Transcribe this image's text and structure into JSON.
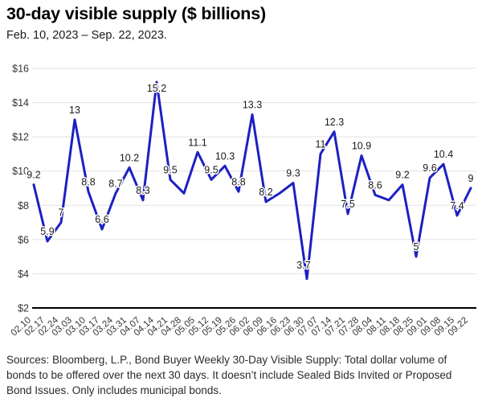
{
  "header": {
    "title": "30-day visible supply ($ billions)",
    "subtitle": "Feb. 10, 2023 – Sep. 22, 2023."
  },
  "chart_data": {
    "type": "line",
    "title": "30-day visible supply ($ billions)",
    "subtitle": "Feb. 10, 2023 – Sep. 22, 2023.",
    "series_name": "30-day visible supply",
    "x_tick_labels": [
      "02.10",
      "02.17",
      "02.24",
      "03.03",
      "03.10",
      "03.17",
      "03.24",
      "03.31",
      "04.07",
      "04.14",
      "04.21",
      "04.28",
      "05.05",
      "05.12",
      "05.19",
      "05.26",
      "06.02",
      "06.09",
      "06.16",
      "06.23",
      "06.30",
      "07.07",
      "07.14",
      "07.21",
      "07.28",
      "08.04",
      "08.11",
      "08.18",
      "08.25",
      "09.01",
      "09.08",
      "09.15",
      "09.22"
    ],
    "values": [
      9.2,
      5.9,
      7,
      13,
      8.8,
      6.6,
      8.7,
      10.2,
      8.3,
      15.2,
      9.5,
      8.7,
      11.1,
      9.5,
      10.3,
      8.8,
      13.3,
      8.2,
      8.7,
      9.3,
      3.7,
      11,
      12.3,
      7.5,
      10.9,
      8.6,
      8.3,
      9.2,
      5,
      9.6,
      10.4,
      7.4,
      9
    ],
    "point_labels": [
      "9.2",
      "5.9",
      "7",
      "13",
      "8.8",
      "6.6",
      "8.7",
      "10.2",
      "8.3",
      "15.2",
      "9.5",
      "",
      "11.1",
      "9.5",
      "10.3",
      "8.8",
      "13.3",
      "8.2",
      "",
      "9.3",
      "3.7",
      "11",
      "12.3",
      "7.5",
      "10.9",
      "8.6",
      "",
      "9.2",
      "5",
      "9.6",
      "10.4",
      "7.4",
      "9"
    ],
    "label_offsets": {
      "9": [
        0,
        20
      ],
      "20": [
        -4,
        -5
      ]
    },
    "y_tick_labels": [
      "$2",
      "$4",
      "$6",
      "$8",
      "$10",
      "$12",
      "$14",
      "$16"
    ],
    "y_tick_values": [
      2,
      4,
      6,
      8,
      10,
      12,
      14,
      16
    ],
    "ylim": [
      2,
      16
    ],
    "grid": "horizontal",
    "x_tick_rotation_deg": -42,
    "line_color": "#1c20c2",
    "point_label_color": "#1a1a1a",
    "axis_label_color": "#333333",
    "baseline_color": "#000000",
    "gridline_color": "#e2e2e2"
  },
  "footer": {
    "source_note": "Sources: Bloomberg, L.P., Bond Buyer Weekly 30-Day Visible Supply: Total dollar volume of bonds to be offered over the next 30 days. It doesn’t include Sealed Bids Invited or Proposed Bond Issues. Only includes municipal bonds."
  }
}
